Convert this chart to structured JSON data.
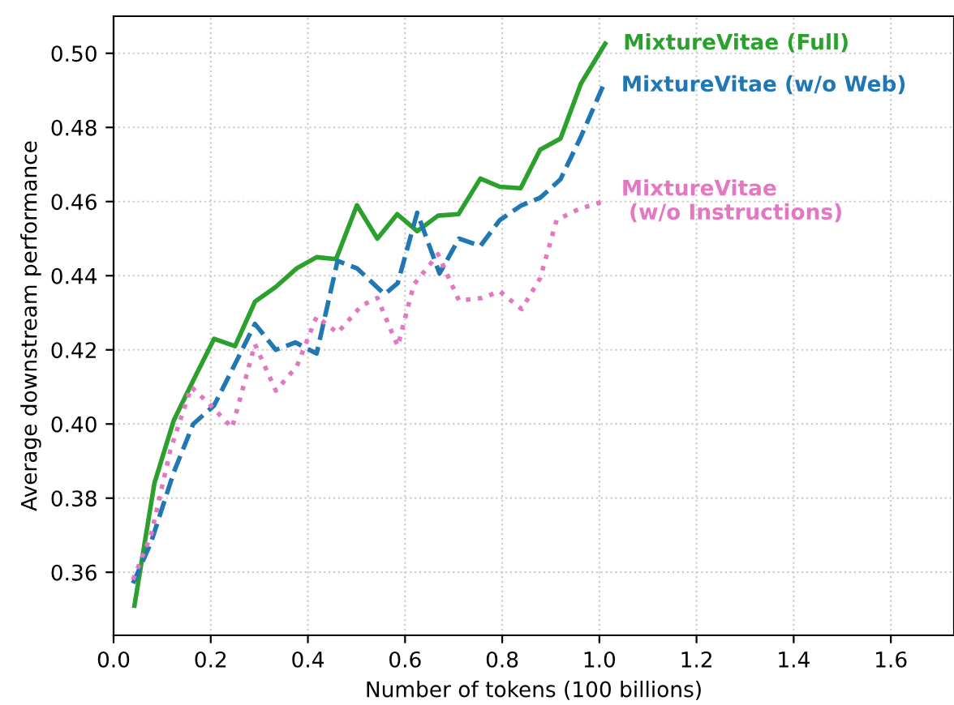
{
  "chart_data": {
    "type": "line",
    "xlabel": "Number of tokens (100 billions)",
    "ylabel": "Average downstream performance",
    "xlim": [
      0,
      1.73
    ],
    "ylim": [
      0.343,
      0.51
    ],
    "xticks": [
      {
        "value": 0,
        "label": "0.0"
      },
      {
        "value": 0.2,
        "label": "0.2"
      },
      {
        "value": 0.4,
        "label": "0.4"
      },
      {
        "value": 0.6,
        "label": "0.6"
      },
      {
        "value": 0.8,
        "label": "0.8"
      },
      {
        "value": 1,
        "label": "1.0"
      },
      {
        "value": 1.2,
        "label": "1.2"
      },
      {
        "value": 1.4,
        "label": "1.4"
      },
      {
        "value": 1.6,
        "label": "1.6"
      }
    ],
    "yticks": [
      {
        "value": 0.36,
        "label": "0.36"
      },
      {
        "value": 0.38,
        "label": "0.38"
      },
      {
        "value": 0.4,
        "label": "0.40"
      },
      {
        "value": 0.42,
        "label": "0.42"
      },
      {
        "value": 0.44,
        "label": "0.44"
      },
      {
        "value": 0.46,
        "label": "0.46"
      },
      {
        "value": 0.48,
        "label": "0.48"
      },
      {
        "value": 0.5,
        "label": "0.50"
      }
    ],
    "grid": true,
    "legend": false,
    "series": [
      {
        "name": "MixtureVitae (Full)",
        "color": "#2ca02c",
        "line_style": "solid",
        "x": [
          0.043,
          0.084,
          0.124,
          0.165,
          0.207,
          0.25,
          0.291,
          0.334,
          0.377,
          0.418,
          0.458,
          0.501,
          0.543,
          0.584,
          0.625,
          0.668,
          0.71,
          0.755,
          0.795,
          0.838,
          0.878,
          0.92,
          0.962,
          1.012
        ],
        "values": [
          0.351,
          0.384,
          0.401,
          0.412,
          0.423,
          0.421,
          0.433,
          0.437,
          0.442,
          0.445,
          0.4445,
          0.459,
          0.45,
          0.4566,
          0.452,
          0.4562,
          0.4566,
          0.4662,
          0.464,
          0.4636,
          0.474,
          0.477,
          0.4918,
          0.5026
        ]
      },
      {
        "name": "MixtureVitae (w/o Web)",
        "color": "#1f77b4",
        "line_style": "dashed",
        "x": [
          0.04,
          0.077,
          0.124,
          0.164,
          0.207,
          0.244,
          0.291,
          0.334,
          0.374,
          0.418,
          0.461,
          0.501,
          0.558,
          0.585,
          0.625,
          0.671,
          0.711,
          0.755,
          0.795,
          0.84,
          0.878,
          0.92,
          0.962,
          1.008
        ],
        "values": [
          0.357,
          0.368,
          0.387,
          0.4,
          0.405,
          0.4146,
          0.427,
          0.42,
          0.422,
          0.419,
          0.444,
          0.442,
          0.435,
          0.438,
          0.457,
          0.4406,
          0.45,
          0.448,
          0.455,
          0.459,
          0.461,
          0.466,
          0.4775,
          0.4913
        ]
      },
      {
        "name": "MixtureVitae\n (w/o Instructions)",
        "color": "#e377c2",
        "line_style": "dotted",
        "x": [
          0.04,
          0.077,
          0.117,
          0.16,
          0.2,
          0.244,
          0.291,
          0.334,
          0.377,
          0.418,
          0.461,
          0.511,
          0.543,
          0.585,
          0.618,
          0.668,
          0.711,
          0.758,
          0.795,
          0.84,
          0.878,
          0.912,
          0.958,
          1.008
        ],
        "values": [
          0.358,
          0.37,
          0.393,
          0.41,
          0.405,
          0.399,
          0.4215,
          0.409,
          0.4155,
          0.429,
          0.4246,
          0.432,
          0.434,
          0.421,
          0.4376,
          0.4458,
          0.4333,
          0.434,
          0.4358,
          0.431,
          0.4393,
          0.455,
          0.458,
          0.46
        ]
      }
    ]
  }
}
